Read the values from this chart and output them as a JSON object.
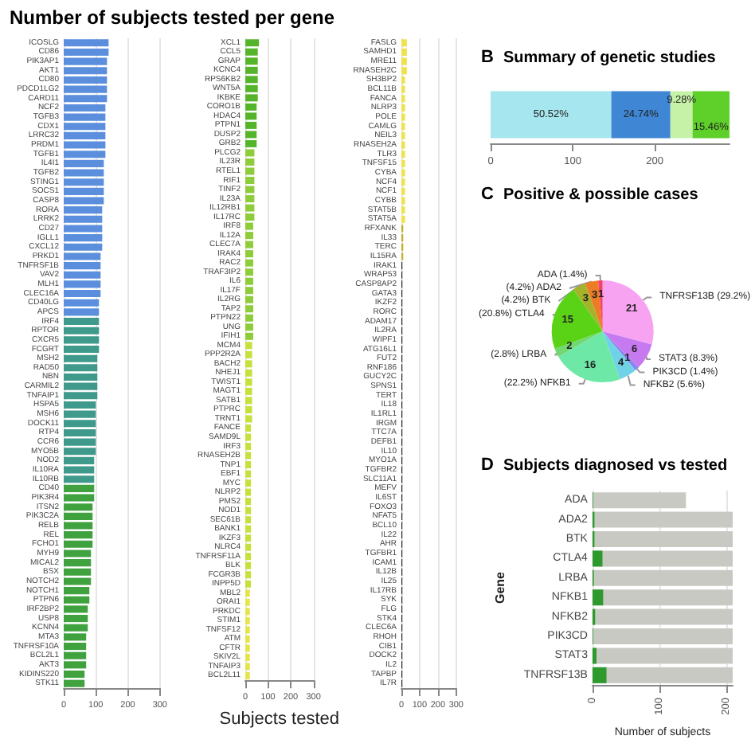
{
  "chart_data": [
    {
      "type": "bar",
      "orientation": "horizontal",
      "title": "Number of subjects tested per gene",
      "grid": "x",
      "xlim": [
        0,
        300
      ],
      "xticks": [
        0,
        100,
        200,
        300
      ],
      "categories": [
        "ICOSLG",
        "CD86",
        "PIK3AP1",
        "AKT1",
        "CD80",
        "PDCD1LG2",
        "CARD11",
        "NCF2",
        "TGFB3",
        "CDX1",
        "LRRC32",
        "PRDM1",
        "TGFB1",
        "IL4I1",
        "TGFB2",
        "STING1",
        "SOCS1",
        "CASP8",
        "RORA",
        "LRRK2",
        "CD27",
        "IGLL1",
        "CXCL12",
        "PRKD1",
        "TNFRSF1B",
        "VAV2",
        "MLH1",
        "CLEC16A",
        "CD40LG",
        "APCS",
        "IRF4",
        "RPTOR",
        "CXCR5",
        "FCGRT",
        "MSH2",
        "RAD50",
        "NBN",
        "CARMIL2",
        "TNFAIP1",
        "HSPA5",
        "MSH6",
        "DOCK11",
        "RTP4",
        "CCR6",
        "MYO5B",
        "NOD2",
        "IL10RA",
        "IL10RB",
        "CD40",
        "PIK3R4",
        "ITSN2",
        "PIK3C2A",
        "RELB",
        "REL",
        "FCHO1",
        "MYH9",
        "MICAL2",
        "BSX",
        "NOTCH2",
        "NOTCH1",
        "PTPN6",
        "IRF2BP2",
        "USP8",
        "KCNN4",
        "MTA3",
        "TNFRSF10A",
        "BCL2L1",
        "AKT3",
        "KIDINS220",
        "STK11"
      ],
      "values": [
        140,
        140,
        135,
        135,
        135,
        135,
        135,
        130,
        130,
        130,
        130,
        130,
        130,
        125,
        125,
        125,
        125,
        125,
        120,
        120,
        120,
        120,
        120,
        115,
        115,
        115,
        115,
        115,
        110,
        110,
        110,
        110,
        110,
        110,
        105,
        105,
        105,
        105,
        105,
        100,
        100,
        100,
        100,
        100,
        100,
        95,
        95,
        95,
        95,
        95,
        90,
        90,
        90,
        90,
        90,
        85,
        85,
        85,
        85,
        80,
        80,
        75,
        75,
        75,
        70,
        70,
        70,
        70,
        65,
        65
      ],
      "colors": [
        "#5b8fdd",
        "#5b8fdd",
        "#5b8fdd",
        "#5b8fdd",
        "#5b8fdd",
        "#5b8fdd",
        "#5b8fdd",
        "#5b8fdd",
        "#5b8fdd",
        "#5b8fdd",
        "#5b8fdd",
        "#5b8fdd",
        "#5b8fdd",
        "#5b8fdd",
        "#5b8fdd",
        "#5b8fdd",
        "#5b8fdd",
        "#5b8fdd",
        "#5b8fdd",
        "#5b8fdd",
        "#5b8fdd",
        "#5b8fdd",
        "#5b8fdd",
        "#5b8fdd",
        "#5b8fdd",
        "#5b8fdd",
        "#5b8fdd",
        "#5b8fdd",
        "#5b8fdd",
        "#5b8fdd",
        "#3f9a8c",
        "#3f9a8c",
        "#3f9a8c",
        "#3f9a8c",
        "#3f9a8c",
        "#3f9a8c",
        "#3f9a8c",
        "#3f9a8c",
        "#3f9a8c",
        "#3f9a8c",
        "#3f9a8c",
        "#3f9a8c",
        "#3f9a8c",
        "#3f9a8c",
        "#3f9a8c",
        "#3f9a8c",
        "#3f9a8c",
        "#3f9a8c",
        "#3fa23f",
        "#3fa23f",
        "#3fa23f",
        "#3fa23f",
        "#3fa23f",
        "#3fa23f",
        "#3fa23f",
        "#3fa23f",
        "#3fa23f",
        "#3fa23f",
        "#3fa23f",
        "#3fa23f",
        "#3fa23f",
        "#3fa23f",
        "#3fa23f",
        "#3fa23f",
        "#3fa23f",
        "#3fa23f",
        "#3fa23f",
        "#3fa23f",
        "#3fa23f",
        "#3fa23f"
      ]
    },
    {
      "type": "bar",
      "orientation": "horizontal",
      "xlabel": "Subjects tested",
      "grid": "x",
      "xlim": [
        0,
        300
      ],
      "xticks": [
        0,
        100,
        200,
        300
      ],
      "categories": [
        "XCL1",
        "CCL5",
        "GRAP",
        "KCNC4",
        "RPS6KB2",
        "WNT5A",
        "IKBKE",
        "CORO1B",
        "HDAC4",
        "PTPN1",
        "DUSP2",
        "GRB2",
        "PLCG2",
        "IL23R",
        "RTEL1",
        "RIF1",
        "TINF2",
        "IL23A",
        "IL12RB1",
        "IL17RC",
        "IRF8",
        "IL12A",
        "CLEC7A",
        "IRAK4",
        "RAC2",
        "TRAF3IP2",
        "IL6",
        "IL17F",
        "IL2RG",
        "TAP2",
        "PTPN22",
        "UNG",
        "IFIH1",
        "MCM4",
        "PPP2R2A",
        "BACH2",
        "NHEJ1",
        "TWIST1",
        "MAGT1",
        "SATB1",
        "PTPRC",
        "TRNT1",
        "FANCE",
        "SAMD9L",
        "IRF3",
        "RNASEH2B",
        "TNP1",
        "EBF1",
        "MYC",
        "NLRP2",
        "PMS2",
        "NOD1",
        "SEC61B",
        "BANK1",
        "IKZF3",
        "NLRC4",
        "TNFRSF11A",
        "BLK",
        "FCGR3B",
        "INPP5D",
        "MBL2",
        "ORAI1",
        "PRKDC",
        "STIM1",
        "TNFSF12",
        "ATM",
        "CFTR",
        "SKIV2L",
        "TNFAIP3",
        "BCL2L11"
      ],
      "values": [
        60,
        55,
        55,
        55,
        55,
        55,
        55,
        50,
        50,
        50,
        50,
        50,
        40,
        40,
        40,
        40,
        40,
        40,
        40,
        40,
        35,
        35,
        35,
        35,
        35,
        35,
        35,
        35,
        35,
        35,
        35,
        35,
        35,
        30,
        30,
        30,
        30,
        30,
        30,
        30,
        30,
        30,
        25,
        25,
        25,
        25,
        25,
        25,
        25,
        25,
        25,
        25,
        25,
        25,
        25,
        25,
        25,
        25,
        25,
        25,
        20,
        20,
        20,
        20,
        20,
        20,
        20,
        20,
        20,
        20
      ],
      "colors": [
        "#55b52a",
        "#55b52a",
        "#55b52a",
        "#55b52a",
        "#55b52a",
        "#55b52a",
        "#55b52a",
        "#55b52a",
        "#55b52a",
        "#55b52a",
        "#55b52a",
        "#55b52a",
        "#8fcc3a",
        "#8fcc3a",
        "#8fcc3a",
        "#8fcc3a",
        "#8fcc3a",
        "#8fcc3a",
        "#8fcc3a",
        "#8fcc3a",
        "#8fcc3a",
        "#8fcc3a",
        "#8fcc3a",
        "#8fcc3a",
        "#8fcc3a",
        "#8fcc3a",
        "#8fcc3a",
        "#8fcc3a",
        "#8fcc3a",
        "#8fcc3a",
        "#8fcc3a",
        "#8fcc3a",
        "#8fcc3a",
        "#c6e03c",
        "#c6e03c",
        "#c6e03c",
        "#c6e03c",
        "#c6e03c",
        "#c6e03c",
        "#c6e03c",
        "#c6e03c",
        "#c6e03c",
        "#c6e03c",
        "#c6e03c",
        "#c6e03c",
        "#c6e03c",
        "#c6e03c",
        "#c6e03c",
        "#c6e03c",
        "#c6e03c",
        "#c6e03c",
        "#c6e03c",
        "#c6e03c",
        "#c6e03c",
        "#c6e03c",
        "#c6e03c",
        "#c6e03c",
        "#c6e03c",
        "#c6e03c",
        "#c6e03c",
        "#e6e44a",
        "#e6e44a",
        "#e6e44a",
        "#e6e44a",
        "#e6e44a",
        "#e6e44a",
        "#e6e44a",
        "#e6e44a",
        "#e6e44a",
        "#e6e44a"
      ]
    },
    {
      "type": "bar",
      "orientation": "horizontal",
      "grid": "x",
      "xlim": [
        0,
        300
      ],
      "xticks": [
        0,
        100,
        200,
        300
      ],
      "categories": [
        "FASLG",
        "SAMHD1",
        "MRE11",
        "RNASEH2C",
        "SH3BP2",
        "BCL11B",
        "FANCA",
        "NLRP3",
        "POLE",
        "CAMLG",
        "NEIL3",
        "RNASEH2A",
        "TLR3",
        "TNFSF15",
        "CYBA",
        "NCF4",
        "NCF1",
        "CYBB",
        "STAT5B",
        "STAT5A",
        "RFXANK",
        "IL33",
        "TERC",
        "IL15RA",
        "IRAK1",
        "WRAP53",
        "CASP8AP2",
        "GATA3",
        "IKZF2",
        "RORC",
        "ADAM17",
        "IL2RA",
        "WIPF1",
        "ATG16L1",
        "FUT2",
        "RNF186",
        "GUCY2C",
        "SPNS1",
        "TERT",
        "IL18",
        "IL1RL1",
        "IRGM",
        "TTC7A",
        "DEFB1",
        "IL10",
        "MYO1A",
        "TGFBR2",
        "SLC11A1",
        "MEFV",
        "IL6ST",
        "FOXO3",
        "NFAT5",
        "BCL10",
        "IL22",
        "AHR",
        "TGFBR1",
        "ICAM1",
        "IL12B",
        "IL25",
        "IL17RB",
        "SYK",
        "FLG",
        "STK4",
        "CLEC6A",
        "RHOH",
        "CIB1",
        "DOCK2",
        "IL2",
        "TAPBP",
        "IL7R"
      ],
      "values": [
        30,
        30,
        30,
        30,
        20,
        20,
        20,
        20,
        20,
        20,
        20,
        20,
        20,
        20,
        20,
        20,
        20,
        20,
        20,
        20,
        10,
        10,
        10,
        10,
        5,
        5,
        5,
        5,
        5,
        5,
        5,
        5,
        5,
        5,
        5,
        5,
        5,
        5,
        5,
        5,
        5,
        5,
        5,
        5,
        5,
        5,
        5,
        5,
        5,
        5,
        5,
        5,
        5,
        5,
        5,
        5,
        5,
        5,
        5,
        5,
        5,
        5,
        5,
        5,
        5,
        5,
        5,
        5,
        5,
        5
      ],
      "colors": [
        "#efe24f",
        "#efe24f",
        "#efe24f",
        "#efe24f",
        "#efe24f",
        "#efe24f",
        "#efe24f",
        "#efe24f",
        "#efe24f",
        "#efe24f",
        "#efe24f",
        "#efe24f",
        "#efe24f",
        "#efe24f",
        "#efe24f",
        "#efe24f",
        "#efe24f",
        "#efe24f",
        "#efe24f",
        "#efe24f",
        "#c0b028",
        "#c0b028",
        "#c0b028",
        "#c0b028",
        "#2a2a1e",
        "#2a2a1e",
        "#2a2a1e",
        "#2a2a1e",
        "#2a2a1e",
        "#2a2a1e",
        "#2a2a1e",
        "#2a2a1e",
        "#2a2a1e",
        "#2a2a1e",
        "#2a2a1e",
        "#2a2a1e",
        "#2a2a1e",
        "#2a2a1e",
        "#2a2a1e",
        "#2a2a1e",
        "#2a2a1e",
        "#2a2a1e",
        "#2a2a1e",
        "#2a2a1e",
        "#2a2a1e",
        "#2a2a1e",
        "#2a2a1e",
        "#2a2a1e",
        "#2a2a1e",
        "#2a2a1e",
        "#2a2a1e",
        "#2a2a1e",
        "#2a2a1e",
        "#2a2a1e",
        "#2a2a1e",
        "#2a2a1e",
        "#2a2a1e",
        "#2a2a1e",
        "#2a2a1e",
        "#2a2a1e",
        "#2a2a1e",
        "#2a2a1e",
        "#2a2a1e",
        "#2a2a1e",
        "#2a2a1e",
        "#2a2a1e",
        "#2a2a1e",
        "#2a2a1e",
        "#2a2a1e",
        "#2a2a1e"
      ]
    },
    {
      "type": "bar",
      "orientation": "horizontal",
      "stacked": true,
      "title": "Summary of genetic studies",
      "categories": [
        null
      ],
      "xlim": [
        0,
        291
      ],
      "xticks": [
        0,
        100,
        200
      ],
      "annotations": [
        "B",
        "50.52%",
        "24.74%",
        "9.28%",
        "15.46%"
      ],
      "series": [
        {
          "color": "#a6e6ee",
          "values": [
            147
          ]
        },
        {
          "color": "#3f86d4",
          "values": [
            72
          ]
        },
        {
          "color": "#c6f2a8",
          "values": [
            27
          ]
        },
        {
          "color": "#5fd02a",
          "values": [
            45
          ]
        }
      ]
    },
    {
      "type": "pie",
      "title": "Positive & possible cases",
      "annotations": [
        "C"
      ],
      "data_labels": true,
      "categories": [
        "TNFRSF13B (29.2%)",
        "STAT3 (8.3%)",
        "PIK3CD (1.4%)",
        "NFKB2 (5.6%)",
        "(22.2%) NFKB1",
        "(2.8%) LRBA",
        "(20.8%) CTLA4",
        "(4.2%) BTK",
        "(4.2%) ADA2",
        "ADA (1.4%)"
      ],
      "values": [
        21,
        6,
        1,
        4,
        16,
        2,
        15,
        3,
        3,
        1
      ],
      "colors": [
        "#f7a3f2",
        "#c77af0",
        "#8a86ee",
        "#6fd2e6",
        "#6ee8a6",
        "#72d872",
        "#5ad317",
        "#a5b32a",
        "#ec7d24",
        "#f2436a"
      ]
    },
    {
      "type": "bar",
      "orientation": "horizontal",
      "title": "Subjects diagnosed vs tested",
      "annotations": [
        "D"
      ],
      "xlabel": "Number of subjects",
      "ylabel": "Gene",
      "grid": true,
      "xlim": [
        0,
        210
      ],
      "xticks": [
        0,
        100,
        200
      ],
      "categories": [
        "ADA",
        "ADA2",
        "BTK",
        "CTLA4",
        "LRBA",
        "NFKB1",
        "NFKB2",
        "PIK3CD",
        "STAT3",
        "TNFRSF13B"
      ],
      "series": [
        {
          "color": "#c9c9c4",
          "values": [
            140,
            210,
            210,
            210,
            210,
            210,
            210,
            210,
            210,
            210
          ]
        },
        {
          "color": "#2e9a2e",
          "values": [
            1,
            3,
            3,
            15,
            2,
            16,
            4,
            1,
            6,
            21
          ]
        }
      ]
    }
  ]
}
